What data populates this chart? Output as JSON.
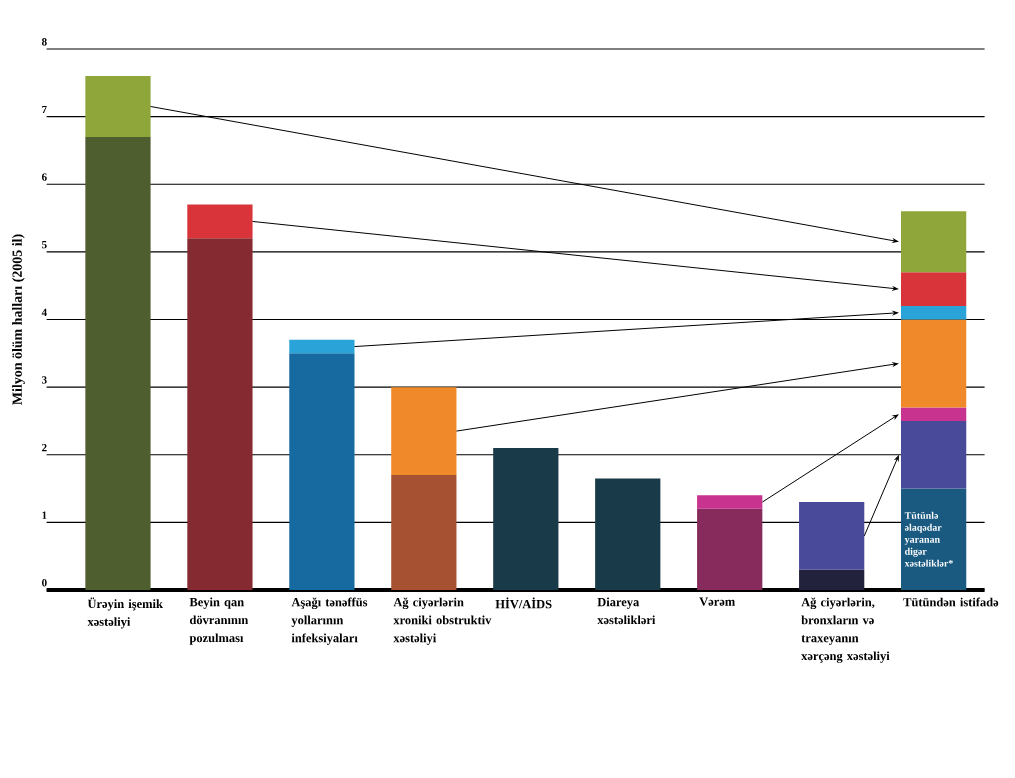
{
  "chart_data": {
    "type": "bar",
    "stacked": true,
    "ylabel": "Milyon ölüm halları (2005 il)",
    "categories": [
      "Ürəyin işemik xəstəliyi",
      "Beyin qan dövranının pozulması",
      "Aşağı tənəffüs yollarının infeksiyaları",
      "Ağ ciyərlərin xroniki obstruktiv xəstəliyi",
      "HİV/AİDS",
      "Diareya xəstəlikləri",
      "Vərəm",
      "Ağ ciyərlərin, bronxların və traxeyanın xərçəng xəstəliyi",
      "Tütündən istifadə"
    ],
    "series": [
      {
        "values": [
          6.7,
          5.2,
          3.5,
          1.7,
          2.1,
          1.65,
          1.2,
          0.3,
          1.5
        ],
        "colors": [
          "#4e5e2f",
          "#852a30",
          "#176aa0",
          "#a65232",
          "#193a48",
          "#193a48",
          "#872a5c",
          "#22223c",
          "#1a5a80"
        ]
      },
      {
        "values": [
          0.9,
          0.5,
          0.2,
          1.3,
          null,
          null,
          0.2,
          1.0,
          1.0
        ],
        "colors": [
          "#8fa63a",
          "#d8343a",
          "#29a3d8",
          "#f0892a",
          null,
          null,
          "#c8338f",
          "#4a4a9a",
          "#4a4a9a"
        ]
      },
      {
        "values": [
          null,
          null,
          null,
          null,
          null,
          null,
          null,
          null,
          0.2
        ],
        "colors": [
          null,
          null,
          null,
          null,
          null,
          null,
          null,
          null,
          "#c8338f"
        ]
      },
      {
        "values": [
          null,
          null,
          null,
          null,
          null,
          null,
          null,
          null,
          1.3
        ],
        "colors": [
          null,
          null,
          null,
          null,
          null,
          null,
          null,
          null,
          "#f0892a"
        ]
      },
      {
        "values": [
          null,
          null,
          null,
          null,
          null,
          null,
          null,
          null,
          0.2
        ],
        "colors": [
          null,
          null,
          null,
          null,
          null,
          null,
          null,
          null,
          "#29a3d8"
        ]
      },
      {
        "values": [
          null,
          null,
          null,
          null,
          null,
          null,
          null,
          null,
          0.5
        ],
        "colors": [
          null,
          null,
          null,
          null,
          null,
          null,
          null,
          null,
          "#d8343a"
        ]
      },
      {
        "values": [
          null,
          null,
          null,
          null,
          null,
          null,
          null,
          null,
          0.9
        ],
        "colors": [
          null,
          null,
          null,
          null,
          null,
          null,
          null,
          null,
          "#8fa63a"
        ]
      }
    ],
    "ylim": [
      0,
      8
    ],
    "yticks": [
      0,
      1,
      2,
      3,
      4,
      5,
      6,
      7,
      8
    ],
    "grid": "y",
    "annotations": [
      "Tütünlə əlaqədar yaranan digər xəstəliklər*"
    ]
  }
}
